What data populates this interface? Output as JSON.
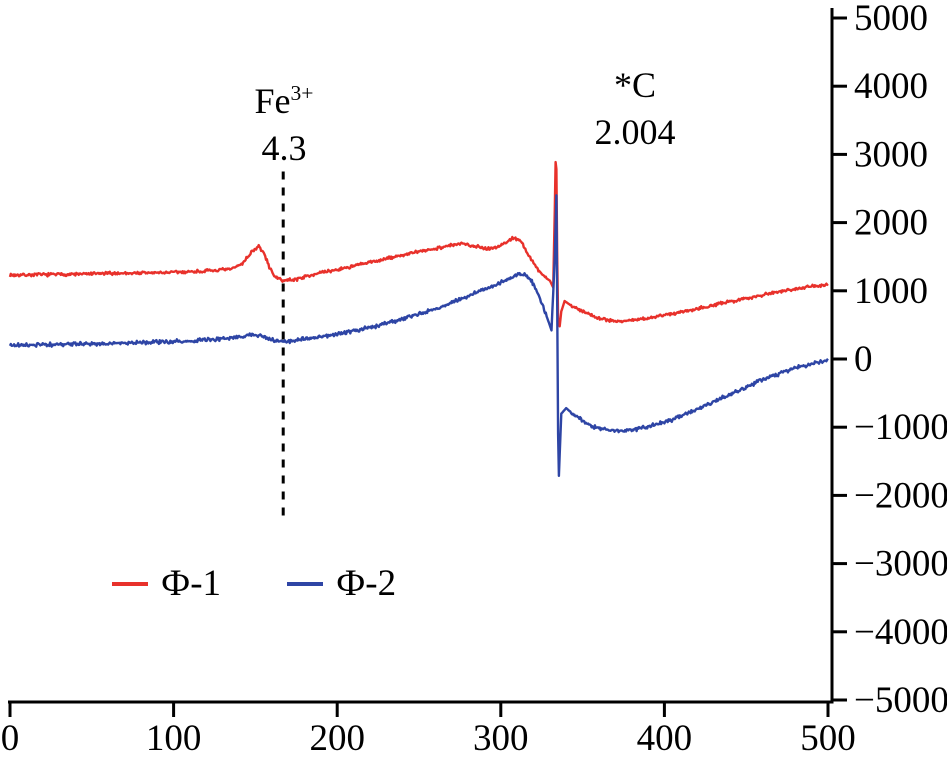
{
  "figure": {
    "background": "#ffffff"
  },
  "chart_data": {
    "type": "line",
    "title": "",
    "x_axis": {
      "label": "",
      "range": [
        0,
        500
      ],
      "ticks": [
        0,
        100,
        200,
        300,
        400,
        500
      ],
      "side": "bottom"
    },
    "y_axis": {
      "label": "",
      "range": [
        -5000,
        5000
      ],
      "ticks": [
        5000,
        4000,
        3000,
        2000,
        1000,
        0,
        -1000,
        -2000,
        -3000,
        -4000,
        -5000
      ],
      "side": "right"
    },
    "grid": false,
    "legend_position": "inside-bottom-left",
    "noise_seed": 7,
    "noise_free_x_ranges": [
      [
        328,
        342
      ]
    ],
    "series": [
      {
        "name": "Ф-1",
        "color": "#e8312b",
        "noise_amplitude": 28,
        "keypoints": [
          [
            0,
            1230
          ],
          [
            15,
            1235
          ],
          [
            30,
            1240
          ],
          [
            45,
            1245
          ],
          [
            60,
            1255
          ],
          [
            75,
            1260
          ],
          [
            90,
            1265
          ],
          [
            105,
            1275
          ],
          [
            120,
            1290
          ],
          [
            135,
            1315
          ],
          [
            142,
            1400
          ],
          [
            148,
            1580
          ],
          [
            152,
            1650
          ],
          [
            155,
            1560
          ],
          [
            159,
            1320
          ],
          [
            163,
            1180
          ],
          [
            168,
            1150
          ],
          [
            175,
            1170
          ],
          [
            185,
            1240
          ],
          [
            200,
            1310
          ],
          [
            215,
            1390
          ],
          [
            230,
            1470
          ],
          [
            245,
            1550
          ],
          [
            260,
            1620
          ],
          [
            270,
            1670
          ],
          [
            278,
            1690
          ],
          [
            285,
            1650
          ],
          [
            292,
            1620
          ],
          [
            298,
            1640
          ],
          [
            303,
            1710
          ],
          [
            308,
            1780
          ],
          [
            312,
            1740
          ],
          [
            316,
            1560
          ],
          [
            320,
            1400
          ],
          [
            325,
            1250
          ],
          [
            328,
            1180
          ],
          [
            330,
            1150
          ],
          [
            332,
            1050
          ],
          [
            333,
            2200
          ],
          [
            333.8,
            3300
          ],
          [
            334.5,
            1500
          ],
          [
            335,
            600
          ],
          [
            336,
            480
          ],
          [
            337,
            700
          ],
          [
            339,
            850
          ],
          [
            342,
            800
          ],
          [
            345,
            760
          ],
          [
            350,
            700
          ],
          [
            355,
            650
          ],
          [
            360,
            600
          ],
          [
            368,
            560
          ],
          [
            375,
            555
          ],
          [
            385,
            580
          ],
          [
            395,
            620
          ],
          [
            410,
            690
          ],
          [
            430,
            790
          ],
          [
            450,
            890
          ],
          [
            470,
            990
          ],
          [
            485,
            1050
          ],
          [
            500,
            1090
          ]
        ]
      },
      {
        "name": "Ф-2",
        "color": "#2e45a5",
        "noise_amplitude": 33,
        "keypoints": [
          [
            0,
            200
          ],
          [
            30,
            215
          ],
          [
            60,
            230
          ],
          [
            90,
            250
          ],
          [
            110,
            265
          ],
          [
            125,
            285
          ],
          [
            135,
            305
          ],
          [
            142,
            330
          ],
          [
            148,
            360
          ],
          [
            153,
            340
          ],
          [
            158,
            300
          ],
          [
            163,
            265
          ],
          [
            168,
            255
          ],
          [
            175,
            280
          ],
          [
            185,
            310
          ],
          [
            195,
            345
          ],
          [
            210,
            410
          ],
          [
            225,
            490
          ],
          [
            240,
            590
          ],
          [
            255,
            700
          ],
          [
            270,
            820
          ],
          [
            282,
            940
          ],
          [
            292,
            1040
          ],
          [
            300,
            1120
          ],
          [
            306,
            1190
          ],
          [
            311,
            1250
          ],
          [
            315,
            1235
          ],
          [
            319,
            1130
          ],
          [
            323,
            950
          ],
          [
            326,
            760
          ],
          [
            329,
            560
          ],
          [
            331,
            420
          ],
          [
            333,
            1500
          ],
          [
            334,
            2400
          ],
          [
            334.6,
            500
          ],
          [
            335.2,
            -1900
          ],
          [
            336,
            -1400
          ],
          [
            337,
            -800
          ],
          [
            340,
            -720
          ],
          [
            345,
            -830
          ],
          [
            350,
            -900
          ],
          [
            355,
            -980
          ],
          [
            365,
            -1040
          ],
          [
            375,
            -1060
          ],
          [
            385,
            -1020
          ],
          [
            395,
            -960
          ],
          [
            405,
            -890
          ],
          [
            420,
            -740
          ],
          [
            440,
            -520
          ],
          [
            460,
            -300
          ],
          [
            480,
            -130
          ],
          [
            495,
            -40
          ],
          [
            500,
            -20
          ]
        ]
      }
    ],
    "annotations": {
      "fe_label_base": "Fe",
      "fe_label_sup": "3+",
      "fe_value": "4.3",
      "fe_line_x": 167,
      "fe_line_y_range": [
        -2350,
        2750
      ],
      "fe_line_style": "dashed",
      "c_label": "*C",
      "c_value": "2.004"
    },
    "legend": [
      {
        "label": "Ф-1",
        "color": "#e8312b"
      },
      {
        "label": "Ф-2",
        "color": "#2e45a5"
      }
    ]
  }
}
